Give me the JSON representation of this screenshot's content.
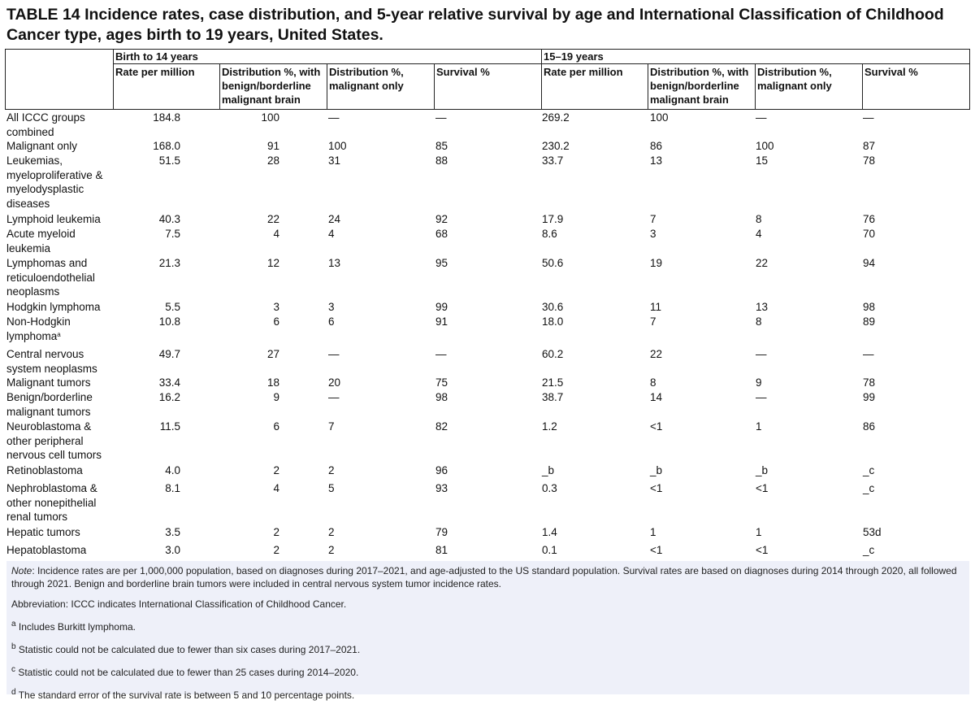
{
  "title": "TABLE 14 Incidence rates, case distribution, and 5-year relative survival by age and International Classification of Childhood Cancer type, ages birth to 19 years, United States.",
  "header": {
    "group1": "Birth to 14 years",
    "group2": "15–19 years",
    "columns": [
      "Rate per million",
      "Distribution %, with benign/borderline malignant brain",
      "Distribution %, malignant only",
      "Survival %",
      "Rate per million",
      "Distribution %, with benign/borderline malignant brain",
      "Distribution %, malignant only",
      "Survival %"
    ]
  },
  "rows": [
    {
      "label": "All ICCC groups combined",
      "values": [
        "184.8",
        "100",
        "—",
        "—",
        "269.2",
        "100",
        "—",
        "—"
      ]
    },
    {
      "label": "Malignant only",
      "values": [
        "168.0",
        "91",
        "100",
        "85",
        "230.2",
        "86",
        "100",
        "87"
      ]
    },
    {
      "label": "Leukemias, myeloproliferative & myelodysplastic diseases",
      "values": [
        "51.5",
        "28",
        "31",
        "88",
        "33.7",
        "13",
        "15",
        "78"
      ]
    },
    {
      "label": "Lymphoid leukemia",
      "values": [
        "40.3",
        "22",
        "24",
        "92",
        "17.9",
        "7",
        "8",
        "76"
      ]
    },
    {
      "label": "Acute myeloid leukemia",
      "values": [
        "7.5",
        "4",
        "4",
        "68",
        "8.6",
        "3",
        "4",
        "70"
      ]
    },
    {
      "label": "Lymphomas and reticuloendothelial neoplasms",
      "values": [
        "21.3",
        "12",
        "13",
        "95",
        "50.6",
        "19",
        "22",
        "94"
      ]
    },
    {
      "label": "Hodgkin lymphoma",
      "values": [
        "5.5",
        "3",
        "3",
        "99",
        "30.6",
        "11",
        "13",
        "98"
      ]
    },
    {
      "label": "Non-Hodgkin lymphoma",
      "label_sup": "a",
      "values": [
        "10.8",
        "6",
        "6",
        "91",
        "18.0",
        "7",
        "8",
        "89"
      ]
    },
    {
      "label": "Central nervous system neoplasms",
      "values": [
        "49.7",
        "27",
        "—",
        "—",
        "60.2",
        "22",
        "—",
        "—"
      ]
    },
    {
      "label": "Malignant tumors",
      "values": [
        "33.4",
        "18",
        "20",
        "75",
        "21.5",
        "8",
        "9",
        "78"
      ]
    },
    {
      "label": "Benign/borderline malignant tumors",
      "values": [
        "16.2",
        "9",
        "—",
        "98",
        "38.7",
        "14",
        "—",
        "99"
      ]
    },
    {
      "label": "Neuroblastoma & other peripheral nervous cell tumors",
      "values": [
        "11.5",
        "6",
        "7",
        "82",
        "1.2",
        "<1",
        "1",
        "86"
      ]
    },
    {
      "label": "Retinoblastoma",
      "values": [
        "4.0",
        "2",
        "2",
        "96",
        "_b",
        "_b",
        "_b",
        "_c"
      ]
    },
    {
      "label": "Nephroblastoma & other nonepithelial renal tumors",
      "values": [
        "8.1",
        "4",
        "5",
        "93",
        "0.3",
        "<1",
        "<1",
        "_c"
      ]
    },
    {
      "label": "Hepatic tumors",
      "values": [
        "3.5",
        "2",
        "2",
        "79",
        "1.4",
        "1",
        "1",
        "53d"
      ]
    },
    {
      "label": "Hepatoblastoma",
      "values": [
        "3.0",
        "2",
        "2",
        "81",
        "0.1",
        "<1",
        "<1",
        "_c"
      ]
    }
  ],
  "notes": {
    "note_label": "Note",
    "note_text": ": Incidence rates are per 1,000,000 population, based on diagnoses during 2017–2021, and age-adjusted to the US standard population. Survival rates are based on diagnoses during 2014 through 2020, all followed through 2021. Benign and borderline brain tumors were included in central nervous system tumor incidence rates.",
    "abbreviation": "Abbreviation: ICCC indicates International Classification of Childhood Cancer.",
    "footnotes": [
      {
        "mark": "a",
        "text": "Includes Burkitt lymphoma."
      },
      {
        "mark": "b",
        "text": "Statistic could not be calculated due to fewer than six cases during 2017–2021."
      },
      {
        "mark": "c",
        "text": "Statistic could not be calculated due to fewer than 25 cases during 2014–2020."
      },
      {
        "mark": "d",
        "text": "The standard error of the survival rate is between 5 and 10 percentage points."
      }
    ]
  }
}
